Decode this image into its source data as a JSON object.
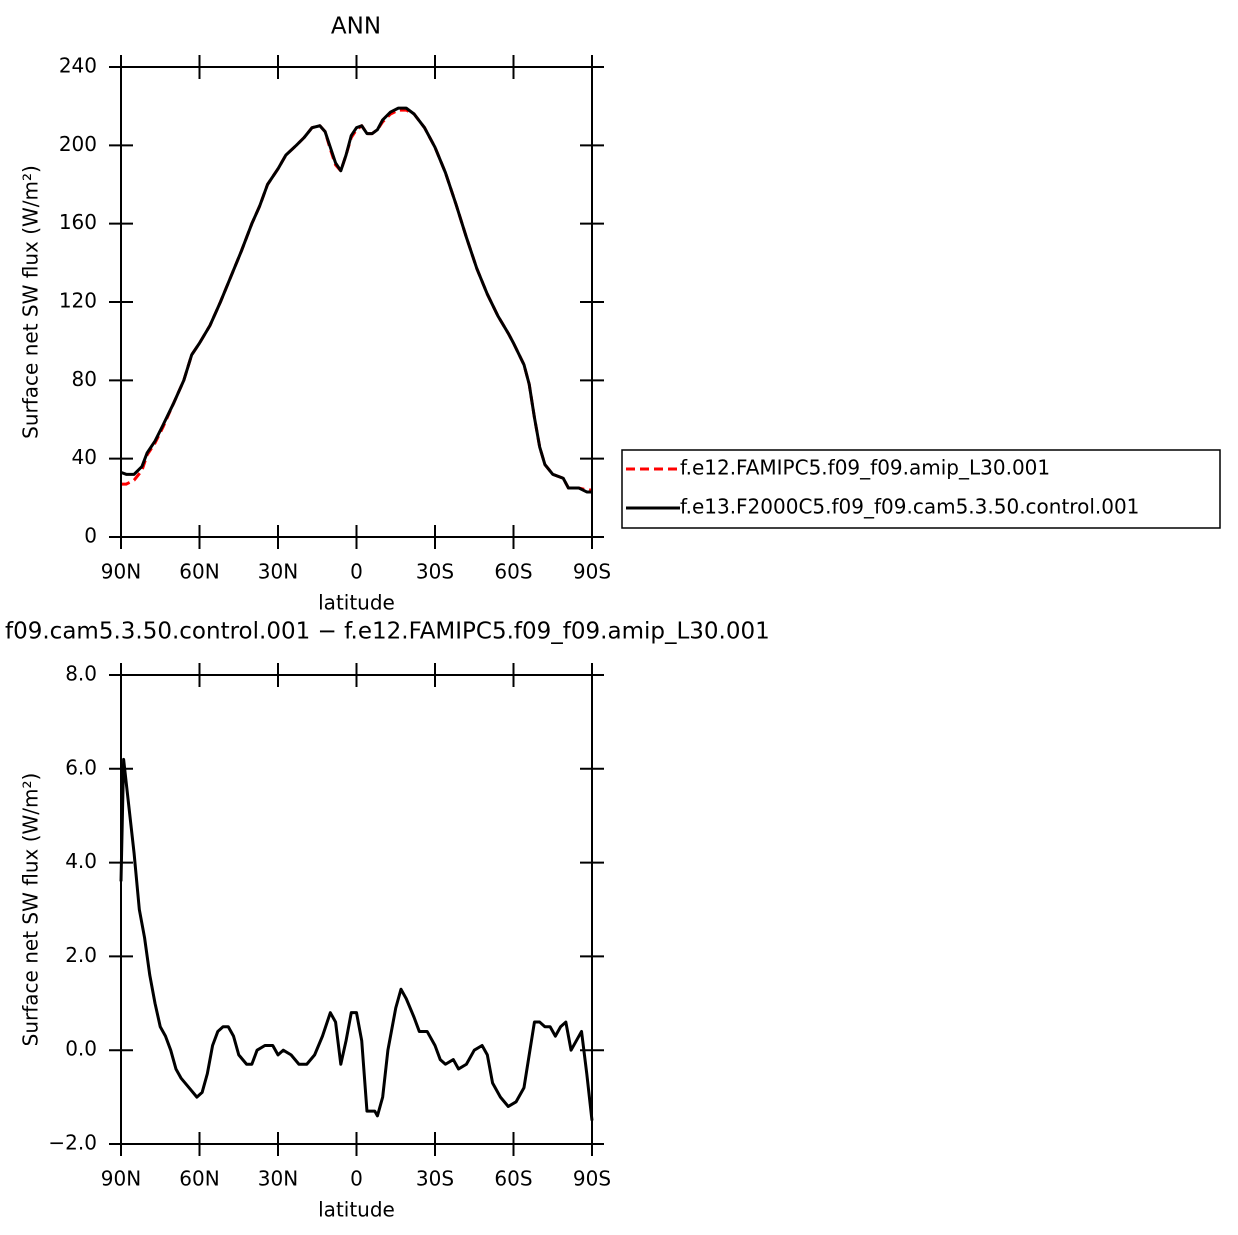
{
  "chart_data": [
    {
      "type": "line",
      "title": "ANN",
      "xlabel": "latitude",
      "ylabel": "Surface net SW flux (W/m²)",
      "x": [
        90,
        88,
        85,
        82,
        80,
        77,
        74,
        70,
        66,
        63,
        60,
        56,
        52,
        48,
        44,
        40,
        37,
        34,
        30,
        27,
        23,
        20,
        17,
        14,
        12,
        10,
        8,
        6,
        4,
        2,
        0,
        -2,
        -4,
        -6,
        -8,
        -10,
        -13,
        -16,
        -19,
        -22,
        -26,
        -30,
        -34,
        -38,
        -42,
        -46,
        -50,
        -54,
        -58,
        -60,
        -64,
        -66,
        -68,
        -70,
        -72,
        -75,
        -79,
        -81,
        -85,
        -88,
        -90
      ],
      "xlim": [
        90,
        -90
      ],
      "xticks": [
        {
          "value": 90,
          "label": "90N"
        },
        {
          "value": 60,
          "label": "60N"
        },
        {
          "value": 30,
          "label": "30N"
        },
        0,
        {
          "value": -30,
          "label": "30S"
        },
        {
          "value": -60,
          "label": "60S"
        },
        {
          "value": -90,
          "label": "90S"
        }
      ],
      "ylim": [
        0,
        240
      ],
      "yticks": [
        0,
        40,
        80,
        120,
        160,
        200,
        240
      ],
      "legend": "right",
      "series": [
        {
          "name": "f.e12.FAMIPC5.f09_f09.amip_L30.001",
          "color": "#ff0000",
          "line_style": "dashed",
          "values": [
            27,
            27,
            29,
            34,
            42,
            48,
            56,
            68,
            80,
            93,
            99,
            108,
            120,
            133,
            146,
            160,
            169,
            180,
            188,
            195,
            200,
            204,
            209,
            210,
            207,
            198,
            190,
            187,
            195,
            204,
            208,
            210,
            206,
            206,
            208,
            212,
            216,
            218,
            218,
            216,
            209,
            199,
            186,
            170,
            153,
            137,
            124,
            113,
            104,
            99,
            88,
            78,
            61,
            46,
            37,
            32,
            30,
            25,
            25,
            24,
            24
          ]
        },
        {
          "name": "f.e13.F2000C5.f09_f09.cam5.3.50.control.001",
          "color": "#000000",
          "line_style": "solid",
          "values": [
            33,
            32,
            32,
            36,
            43,
            49,
            57,
            68,
            80,
            93,
            99,
            108,
            120,
            133,
            146,
            160,
            169,
            180,
            188,
            195,
            200,
            204,
            209,
            210,
            207,
            199,
            191,
            187,
            195,
            205,
            209,
            210,
            206,
            206,
            208,
            213,
            217,
            219,
            219,
            216,
            209,
            199,
            186,
            170,
            153,
            137,
            124,
            113,
            104,
            99,
            88,
            78,
            61,
            46,
            37,
            32,
            30,
            25,
            25,
            23,
            23
          ]
        }
      ]
    },
    {
      "type": "line",
      "title": "f09.cam5.3.50.control.001 − f.e12.FAMIPC5.f09_f09.amip_L30.001",
      "xlabel": "latitude",
      "ylabel": "Surface net SW flux (W/m²)",
      "x": [
        90,
        89,
        87,
        85,
        83,
        81,
        79,
        77,
        75,
        73,
        71,
        69,
        67,
        64,
        61,
        59,
        57,
        55,
        53,
        51,
        49,
        47,
        45,
        42,
        40,
        38,
        35,
        32,
        30,
        28,
        25,
        22,
        19,
        16,
        13,
        10,
        8,
        6,
        4,
        2,
        0,
        -2,
        -4,
        -7,
        -8,
        -10,
        -12,
        -15,
        -17,
        -19,
        -22,
        -24,
        -27,
        -30,
        -32,
        -34,
        -37,
        -39,
        -42,
        -45,
        -48,
        -50,
        -52,
        -55,
        -58,
        -61,
        -64,
        -66,
        -68,
        -70,
        -72,
        -74,
        -76,
        -78,
        -80,
        -82,
        -84,
        -86,
        -88,
        -90
      ],
      "xlim": [
        90,
        -90
      ],
      "xticks": [
        {
          "value": 90,
          "label": "90N"
        },
        {
          "value": 60,
          "label": "60N"
        },
        {
          "value": 30,
          "label": "30N"
        },
        0,
        {
          "value": -30,
          "label": "30S"
        },
        {
          "value": -60,
          "label": "60S"
        },
        {
          "value": -90,
          "label": "90S"
        }
      ],
      "ylim": [
        -2,
        8
      ],
      "yticks": [
        {
          "value": -2,
          "label": "−2.0"
        },
        {
          "value": 0,
          "label": "0.0"
        },
        {
          "value": 2,
          "label": "2.0"
        },
        {
          "value": 4,
          "label": "4.0"
        },
        {
          "value": 6,
          "label": "6.0"
        },
        {
          "value": 8,
          "label": "8.0"
        }
      ],
      "series": [
        {
          "color": "#000000",
          "line_style": "solid",
          "values": [
            3.6,
            6.2,
            5.2,
            4.2,
            3.0,
            2.4,
            1.6,
            1.0,
            0.5,
            0.3,
            0.0,
            -0.4,
            -0.6,
            -0.8,
            -1.0,
            -0.9,
            -0.5,
            0.1,
            0.4,
            0.5,
            0.5,
            0.3,
            -0.1,
            -0.3,
            -0.3,
            0.0,
            0.1,
            0.1,
            -0.1,
            0.0,
            -0.1,
            -0.3,
            -0.3,
            -0.1,
            0.3,
            0.8,
            0.6,
            -0.3,
            0.2,
            0.8,
            0.8,
            0.2,
            -1.3,
            -1.3,
            -1.4,
            -1.0,
            0.0,
            0.9,
            1.3,
            1.1,
            0.7,
            0.4,
            0.4,
            0.1,
            -0.2,
            -0.3,
            -0.2,
            -0.4,
            -0.3,
            0.0,
            0.1,
            -0.1,
            -0.7,
            -1.0,
            -1.2,
            -1.1,
            -0.8,
            -0.1,
            0.6,
            0.6,
            0.5,
            0.5,
            0.3,
            0.5,
            0.6,
            0.0,
            0.2,
            0.4,
            -0.5,
            -1.5
          ]
        }
      ]
    }
  ]
}
